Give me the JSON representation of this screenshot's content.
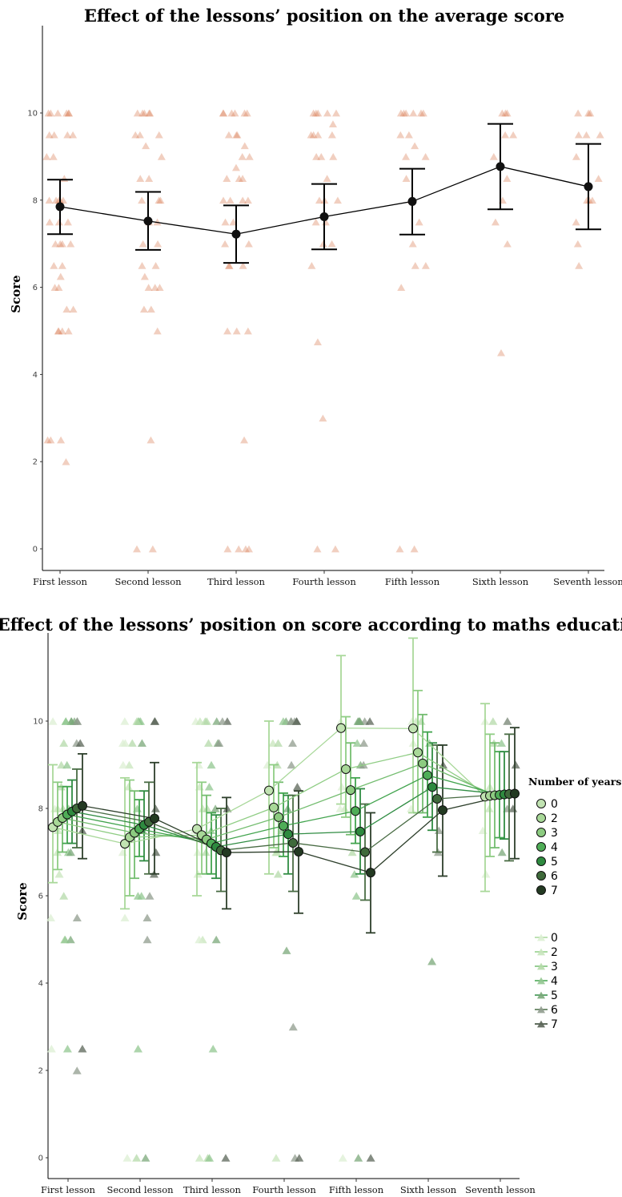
{
  "chart_data": [
    {
      "type": "scatter",
      "title": "Effect of the lessons’ position on the average score",
      "ylabel": "Score",
      "xlabel": "",
      "categories": [
        "First lesson",
        "Second lesson",
        "Third lesson",
        "Fourth lesson",
        "Fifth lesson",
        "Sixth lesson",
        "Seventh lesson"
      ],
      "yticks": [
        0,
        2,
        4,
        6,
        8,
        10
      ],
      "ylim": [
        -0.5,
        12
      ],
      "grid": false,
      "point_color": "#d9825a",
      "line_color": "#000000",
      "means": [
        7.85,
        7.52,
        7.22,
        7.62,
        7.97,
        8.77,
        8.31
      ],
      "ci_low": [
        7.22,
        6.86,
        6.56,
        6.87,
        7.21,
        7.79,
        7.33
      ],
      "ci_high": [
        8.47,
        8.19,
        7.88,
        8.37,
        8.72,
        9.75,
        9.29
      ],
      "raw_points": [
        [
          10,
          10,
          10,
          10,
          10,
          10,
          9.5,
          9.5,
          9.5,
          9.5,
          9,
          9,
          8.5,
          8,
          8,
          8,
          8,
          8,
          7.5,
          7.5,
          7.5,
          7,
          7,
          7,
          7,
          6.5,
          6.5,
          6.25,
          6,
          6,
          5.5,
          5.5,
          5,
          5,
          5,
          5,
          2.5,
          2.5,
          2.5,
          2
        ],
        [
          10,
          10,
          10,
          10,
          10,
          9.5,
          9.5,
          9.5,
          9.25,
          9,
          8.5,
          8.5,
          8,
          8,
          8,
          7.5,
          7.5,
          7,
          7,
          6.5,
          6.5,
          6.25,
          6,
          6,
          6,
          5.5,
          5.5,
          5,
          2.5,
          0,
          0
        ],
        [
          10,
          10,
          10,
          10,
          10,
          10,
          9.5,
          9.5,
          9.5,
          9.25,
          9,
          9,
          8.75,
          8.5,
          8.5,
          8.5,
          8,
          8,
          8,
          8,
          7.5,
          7.5,
          7,
          7,
          6.5,
          6.5,
          6.5,
          5,
          5,
          5,
          2.5,
          0,
          0,
          0,
          0
        ],
        [
          10,
          10,
          10,
          10,
          10,
          9.75,
          9.5,
          9.5,
          9.5,
          9.5,
          9,
          9,
          9,
          8.5,
          8,
          8,
          8,
          7.5,
          7.5,
          7,
          7,
          6.5,
          4.75,
          3,
          0,
          0
        ],
        [
          10,
          10,
          10,
          10,
          10,
          10,
          9.5,
          9.5,
          9.25,
          9,
          9,
          8.5,
          8,
          8,
          7.5,
          7,
          6.5,
          6.5,
          6,
          0,
          0
        ],
        [
          10,
          10,
          10,
          9.5,
          9.5,
          9,
          8.5,
          8,
          7.5,
          7,
          4.5
        ],
        [
          10,
          10,
          10,
          9.5,
          9.5,
          9.5,
          9,
          8.5,
          8,
          8,
          8,
          7.5,
          7,
          6.5
        ]
      ]
    },
    {
      "type": "scatter",
      "title": "Effect of the lessons’ position on score according to maths education",
      "ylabel": "Score",
      "xlabel": "",
      "categories": [
        "First lesson",
        "Second lesson",
        "Third lesson",
        "Fourth lesson",
        "Fifth lesson",
        "Sixth lesson",
        "Seventh lesson"
      ],
      "yticks": [
        0,
        2,
        4,
        6,
        8,
        10
      ],
      "ylim": [
        -0.5,
        12
      ],
      "grid": false,
      "legend_title": "Number of years",
      "legend_position": "right",
      "groups": [
        "0",
        "2",
        "3",
        "4",
        "5",
        "6",
        "7"
      ],
      "group_colors": [
        "#c1e3b2",
        "#a8d898",
        "#8ccb80",
        "#4fad57",
        "#2e8a3f",
        "#3f6a3b",
        "#233a22"
      ],
      "line_colors": [
        "#a9d89a",
        "#8fcd84",
        "#74bd70",
        "#42a44e",
        "#2f8c42",
        "#496c44",
        "#2d3f2b"
      ],
      "triangle_colors": [
        "#dcefd3",
        "#c8e6bc",
        "#b4daa9",
        "#92c790",
        "#7ba87a",
        "#909c8e",
        "#5b6558"
      ],
      "series": [
        {
          "name": "0",
          "means": [
            7.57,
            7.19,
            7.53,
            8.41,
            9.84,
            9.83,
            8.27
          ],
          "ci_low": [
            6.3,
            5.7,
            6.0,
            6.5,
            8.1,
            7.9,
            6.1
          ],
          "ci_high": [
            9.0,
            8.7,
            9.05,
            10.0,
            11.5,
            11.9,
            10.4
          ]
        },
        {
          "name": "2",
          "means": [
            7.69,
            7.34,
            7.39,
            8.02,
            8.9,
            9.28,
            8.29
          ],
          "ci_low": [
            6.6,
            6.0,
            6.5,
            7.1,
            7.8,
            7.9,
            6.9
          ],
          "ci_high": [
            8.6,
            8.65,
            8.6,
            9.0,
            10.1,
            10.7,
            9.7
          ]
        },
        {
          "name": "3",
          "means": [
            7.78,
            7.44,
            7.29,
            7.8,
            8.42,
            9.03,
            8.3
          ],
          "ci_low": [
            7.0,
            6.4,
            6.5,
            7.0,
            7.4,
            7.9,
            7.1
          ],
          "ci_high": [
            8.5,
            8.4,
            8.3,
            8.6,
            9.5,
            10.15,
            9.5
          ]
        },
        {
          "name": "4",
          "means": [
            7.86,
            7.53,
            7.2,
            7.6,
            7.94,
            8.76,
            8.31
          ],
          "ci_low": [
            7.2,
            6.9,
            6.5,
            6.9,
            7.2,
            7.8,
            7.33
          ],
          "ci_high": [
            8.5,
            8.2,
            7.9,
            8.35,
            8.7,
            9.75,
            9.3
          ]
        },
        {
          "name": "5",
          "means": [
            7.93,
            7.62,
            7.12,
            7.41,
            7.47,
            8.49,
            8.32
          ],
          "ci_low": [
            7.2,
            6.8,
            6.4,
            6.5,
            6.5,
            7.5,
            7.3
          ],
          "ci_high": [
            8.65,
            8.4,
            7.85,
            8.3,
            8.45,
            9.5,
            9.3
          ]
        },
        {
          "name": "6",
          "means": [
            8.0,
            7.69,
            7.04,
            7.21,
            7.0,
            8.22,
            8.33
          ],
          "ci_low": [
            7.1,
            6.5,
            6.1,
            6.1,
            5.9,
            7.0,
            6.8
          ],
          "ci_high": [
            8.9,
            8.6,
            8.0,
            8.3,
            8.1,
            9.45,
            9.7
          ]
        },
        {
          "name": "7",
          "means": [
            8.06,
            7.77,
            6.99,
            7.01,
            6.53,
            7.96,
            8.34
          ],
          "ci_low": [
            6.85,
            6.5,
            5.7,
            5.6,
            5.15,
            6.45,
            6.85
          ],
          "ci_high": [
            9.25,
            9.05,
            8.25,
            8.4,
            7.9,
            9.45,
            9.85
          ]
        }
      ],
      "raw_points": [
        [
          10,
          10,
          10,
          10,
          10,
          10,
          10,
          10,
          9.5,
          9.5,
          9.5,
          9,
          9,
          8.5,
          8,
          8,
          8,
          8,
          7.5,
          7.5,
          7,
          7,
          7,
          6.5,
          6,
          5.5,
          5.5,
          5,
          5,
          5,
          2.5,
          2.5,
          2.5,
          2
        ],
        [
          10,
          10,
          10,
          10,
          10,
          10,
          10,
          9.5,
          9.5,
          9.5,
          9.5,
          9,
          9,
          8.5,
          8,
          8,
          7.5,
          7,
          7,
          6.5,
          6,
          6,
          6,
          5.5,
          5.5,
          5,
          2.5,
          0,
          0,
          0
        ],
        [
          10,
          10,
          10,
          10,
          10,
          10,
          10,
          9.5,
          9.5,
          9.5,
          9,
          9,
          8.5,
          8.5,
          8,
          8,
          8,
          8,
          7.5,
          7.5,
          7,
          7,
          6.5,
          6.5,
          5,
          5,
          5,
          2.5,
          0,
          0,
          0,
          0
        ],
        [
          10,
          10,
          10,
          10,
          10,
          10,
          10,
          9.5,
          9.5,
          9.5,
          9,
          9,
          9,
          8.5,
          8,
          8,
          7.5,
          7,
          7,
          6.5,
          4.75,
          3,
          0,
          0,
          0
        ],
        [
          10,
          10,
          10,
          10,
          10,
          10,
          10,
          9.5,
          9.5,
          9,
          9,
          8.5,
          8,
          8,
          7.5,
          7,
          6.5,
          6,
          0,
          0,
          0
        ],
        [
          10,
          10,
          10,
          9.5,
          9.5,
          9,
          8.5,
          8,
          7.5,
          7,
          4.5
        ],
        [
          10,
          10,
          10,
          10,
          9.5,
          9.5,
          9,
          8.5,
          8,
          8,
          8,
          7.5,
          7,
          6.5
        ]
      ]
    }
  ]
}
